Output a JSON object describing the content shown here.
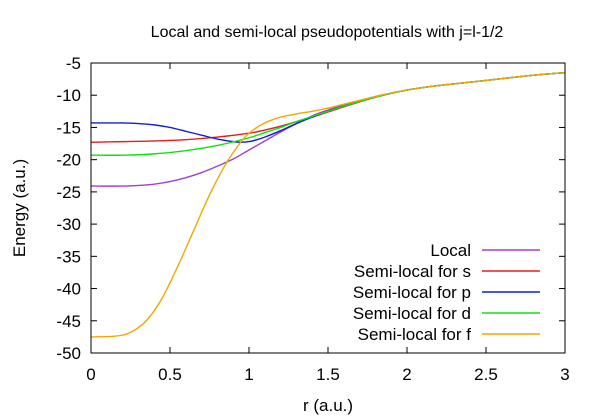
{
  "chart_data": {
    "type": "line",
    "title": "Local and semi-local pseudopotentials with j=l-1/2",
    "xlabel": "r (a.u.)",
    "ylabel": "Energy (a.u.)",
    "xlim": [
      0,
      3
    ],
    "ylim": [
      -50,
      -5
    ],
    "xticks": [
      0,
      0.5,
      1,
      1.5,
      2,
      2.5,
      3
    ],
    "xtick_labels": [
      "0",
      "0.5",
      "1",
      "1.5",
      "2",
      "2.5",
      "3"
    ],
    "yticks": [
      -50,
      -45,
      -40,
      -35,
      -30,
      -25,
      -20,
      -15,
      -10,
      -5
    ],
    "ytick_labels": [
      "-50",
      "-45",
      "-40",
      "-35",
      "-30",
      "-25",
      "-20",
      "-15",
      "-10",
      "-5"
    ],
    "grid": false,
    "legend_position": "bottom-right",
    "series": [
      {
        "name": "Local",
        "color": "#a040d0",
        "x": [
          0,
          0.2,
          0.3,
          0.4,
          0.5,
          0.6,
          0.7,
          0.8,
          0.9,
          1.0,
          1.1,
          1.2,
          1.3,
          1.4,
          1.5,
          1.6,
          1.8,
          2.0,
          2.2,
          2.5,
          2.8,
          3.0
        ],
        "y": [
          -24.1,
          -24.1,
          -24.0,
          -23.8,
          -23.4,
          -22.8,
          -22.0,
          -21.0,
          -19.9,
          -18.5,
          -17.1,
          -15.7,
          -14.4,
          -13.2,
          -12.3,
          -11.5,
          -10.2,
          -9.2,
          -8.5,
          -7.7,
          -6.9,
          -6.5
        ]
      },
      {
        "name": "Semi-local for s",
        "color": "#e02020",
        "x": [
          0,
          0.2,
          0.4,
          0.6,
          0.8,
          1.0,
          1.1,
          1.2,
          1.3,
          1.4,
          1.5,
          1.6,
          1.8,
          2.0,
          2.2,
          2.5,
          2.8,
          3.0
        ],
        "y": [
          -17.3,
          -17.2,
          -17.1,
          -16.9,
          -16.5,
          -15.9,
          -15.4,
          -14.8,
          -14.1,
          -13.4,
          -12.6,
          -11.8,
          -10.3,
          -9.2,
          -8.5,
          -7.7,
          -6.9,
          -6.5
        ]
      },
      {
        "name": "Semi-local for p",
        "color": "#1020d0",
        "x": [
          0,
          0.2,
          0.3,
          0.4,
          0.5,
          0.6,
          0.7,
          0.8,
          0.9,
          0.95,
          1.0,
          1.05,
          1.1,
          1.2,
          1.3,
          1.4,
          1.5,
          1.6,
          1.8,
          2.0,
          2.2,
          2.5,
          2.8,
          3.0
        ],
        "y": [
          -14.3,
          -14.3,
          -14.4,
          -14.6,
          -15.0,
          -15.6,
          -16.2,
          -16.8,
          -17.2,
          -17.3,
          -17.2,
          -16.9,
          -16.5,
          -15.5,
          -14.4,
          -13.4,
          -12.5,
          -11.7,
          -10.3,
          -9.2,
          -8.5,
          -7.7,
          -6.9,
          -6.5
        ]
      },
      {
        "name": "Semi-local for d",
        "color": "#10e010",
        "x": [
          0,
          0.2,
          0.4,
          0.6,
          0.8,
          1.0,
          1.1,
          1.2,
          1.3,
          1.4,
          1.5,
          1.6,
          1.8,
          2.0,
          2.2,
          2.5,
          2.8,
          3.0
        ],
        "y": [
          -19.3,
          -19.3,
          -19.1,
          -18.6,
          -17.8,
          -16.6,
          -15.8,
          -15.0,
          -14.1,
          -13.3,
          -12.5,
          -11.7,
          -10.3,
          -9.2,
          -8.5,
          -7.7,
          -6.9,
          -6.5
        ]
      },
      {
        "name": "Semi-local for f",
        "color": "#f0a800",
        "x": [
          0,
          0.15,
          0.25,
          0.35,
          0.45,
          0.55,
          0.65,
          0.75,
          0.85,
          0.95,
          1.0,
          1.05,
          1.1,
          1.15,
          1.2,
          1.3,
          1.4,
          1.5,
          1.6,
          1.8,
          2.0,
          2.2,
          2.5,
          2.8,
          3.0
        ],
        "y": [
          -47.5,
          -47.4,
          -46.8,
          -45.0,
          -41.5,
          -36.5,
          -31.0,
          -25.5,
          -20.8,
          -17.2,
          -15.9,
          -15.0,
          -14.3,
          -13.8,
          -13.4,
          -12.9,
          -12.5,
          -12.0,
          -11.4,
          -10.2,
          -9.2,
          -8.5,
          -7.7,
          -6.9,
          -6.5
        ]
      }
    ]
  }
}
